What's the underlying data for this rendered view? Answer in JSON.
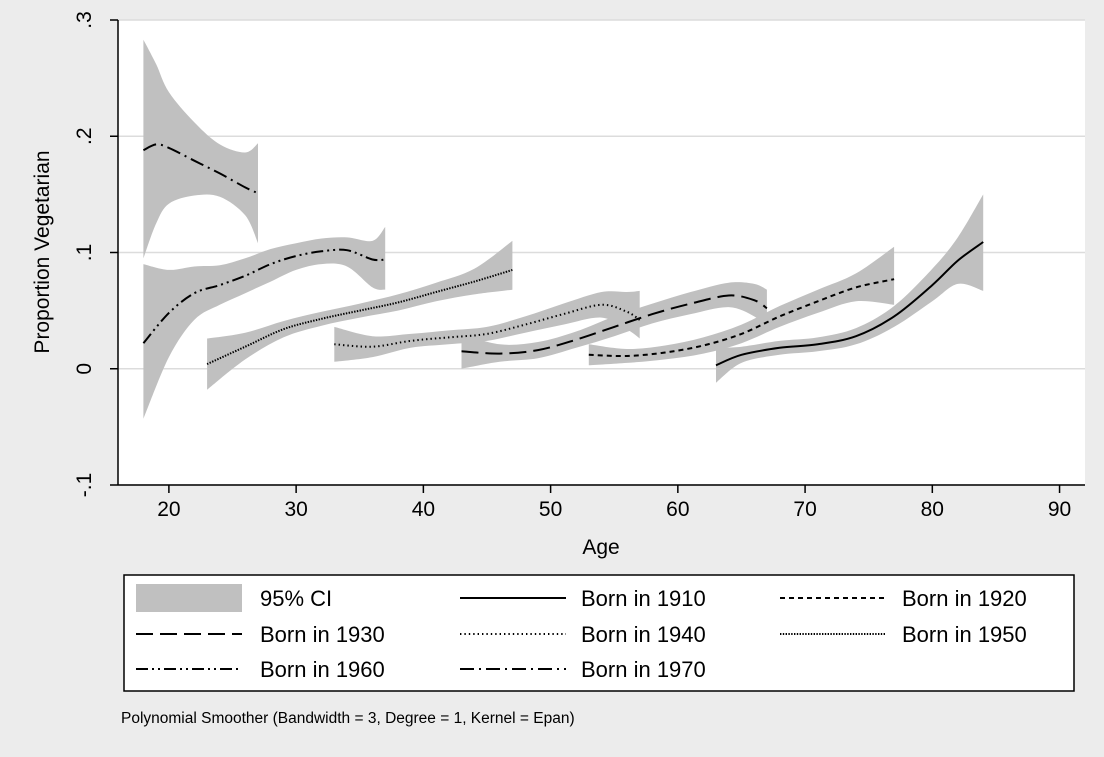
{
  "chart_data": {
    "type": "line",
    "xlabel": "Age",
    "ylabel": "Proportion Vegetarian",
    "xlim": [
      16,
      92
    ],
    "ylim": [
      -0.1,
      0.3
    ],
    "x_ticks": [
      "20",
      "30",
      "40",
      "50",
      "60",
      "70",
      "80",
      "90"
    ],
    "y_ticks": [
      "-.1",
      "0",
      ".1",
      ".2",
      ".3"
    ],
    "grid": "horizontal",
    "legend_position": "bottom",
    "legend": [
      {
        "label": "95% CI",
        "style": "band"
      },
      {
        "label": "Born in 1910",
        "style": "solid"
      },
      {
        "label": "Born in 1920",
        "style": "short-dash"
      },
      {
        "label": "Born in 1930",
        "style": "long-dash"
      },
      {
        "label": "Born in 1940",
        "style": "dot"
      },
      {
        "label": "Born in 1950",
        "style": "dense-dot"
      },
      {
        "label": "Born in 1960",
        "style": "dash-dot-dot"
      },
      {
        "label": "Born in 1970",
        "style": "dash-dot"
      }
    ],
    "note": "Polynomial Smoother (Bandwidth = 3, Degree = 1, Kernel = Epan)",
    "colors": {
      "band": "#c0c0c0",
      "line": "#000000",
      "grid": "#dcdcdc",
      "plot_bg": "#ffffff",
      "outer_bg": "#ececec"
    },
    "series": [
      {
        "name": "Born in 1970",
        "style": "dash-dot",
        "x": [
          18,
          19,
          20,
          22,
          24,
          26,
          27
        ],
        "y": [
          0.188,
          0.193,
          0.19,
          0.179,
          0.168,
          0.156,
          0.151
        ],
        "ci_lower": [
          0.095,
          0.125,
          0.142,
          0.149,
          0.148,
          0.132,
          0.108
        ],
        "ci_upper": [
          0.283,
          0.262,
          0.238,
          0.212,
          0.193,
          0.186,
          0.194
        ]
      },
      {
        "name": "Born in 1960",
        "style": "dash-dot-dot",
        "x": [
          18,
          20,
          22,
          24,
          26,
          28,
          30,
          32,
          34,
          36,
          37
        ],
        "y": [
          0.022,
          0.048,
          0.065,
          0.072,
          0.08,
          0.09,
          0.097,
          0.101,
          0.102,
          0.094,
          0.094
        ],
        "ci_lower": [
          -0.043,
          0.01,
          0.042,
          0.055,
          0.065,
          0.075,
          0.085,
          0.09,
          0.088,
          0.07,
          0.068
        ],
        "ci_upper": [
          0.09,
          0.085,
          0.088,
          0.089,
          0.095,
          0.103,
          0.108,
          0.112,
          0.113,
          0.11,
          0.122
        ]
      },
      {
        "name": "Born in 1950",
        "style": "dense-dot",
        "x": [
          23,
          26,
          29,
          32,
          35,
          38,
          41,
          44,
          47
        ],
        "y": [
          0.004,
          0.019,
          0.034,
          0.043,
          0.05,
          0.057,
          0.066,
          0.075,
          0.085
        ],
        "ci_lower": [
          -0.018,
          0.008,
          0.027,
          0.037,
          0.044,
          0.05,
          0.058,
          0.064,
          0.068
        ],
        "ci_upper": [
          0.026,
          0.031,
          0.041,
          0.049,
          0.056,
          0.064,
          0.074,
          0.086,
          0.11
        ]
      },
      {
        "name": "Born in 1940",
        "style": "dot",
        "x": [
          33,
          36,
          39,
          42,
          45,
          48,
          51,
          54,
          56,
          57
        ],
        "y": [
          0.021,
          0.019,
          0.024,
          0.027,
          0.03,
          0.038,
          0.047,
          0.055,
          0.049,
          0.042
        ],
        "ci_lower": [
          0.006,
          0.01,
          0.018,
          0.021,
          0.024,
          0.031,
          0.038,
          0.044,
          0.034,
          0.026
        ],
        "ci_upper": [
          0.036,
          0.028,
          0.03,
          0.033,
          0.036,
          0.045,
          0.056,
          0.066,
          0.066,
          0.067
        ]
      },
      {
        "name": "Born in 1930",
        "style": "long-dash",
        "x": [
          43,
          46,
          49,
          52,
          55,
          58,
          61,
          64,
          66,
          67
        ],
        "y": [
          0.015,
          0.013,
          0.016,
          0.025,
          0.036,
          0.047,
          0.056,
          0.063,
          0.059,
          0.052
        ],
        "ci_lower": [
          0.0,
          0.006,
          0.009,
          0.018,
          0.028,
          0.039,
          0.047,
          0.053,
          0.045,
          0.035
        ],
        "ci_upper": [
          0.03,
          0.021,
          0.023,
          0.032,
          0.045,
          0.056,
          0.066,
          0.074,
          0.073,
          0.068
        ]
      },
      {
        "name": "Born in 1920",
        "style": "short-dash",
        "x": [
          53,
          56,
          59,
          62,
          65,
          68,
          71,
          74,
          77
        ],
        "y": [
          0.012,
          0.011,
          0.014,
          0.02,
          0.03,
          0.045,
          0.058,
          0.07,
          0.077
        ],
        "ci_lower": [
          0.003,
          0.005,
          0.008,
          0.013,
          0.022,
          0.036,
          0.048,
          0.058,
          0.055
        ],
        "ci_upper": [
          0.021,
          0.017,
          0.02,
          0.027,
          0.038,
          0.054,
          0.068,
          0.082,
          0.105
        ]
      },
      {
        "name": "Born in 1910",
        "style": "solid",
        "x": [
          63,
          65,
          68,
          71,
          74,
          77,
          80,
          82,
          84
        ],
        "y": [
          0.003,
          0.012,
          0.018,
          0.021,
          0.028,
          0.045,
          0.072,
          0.093,
          0.109
        ],
        "ci_lower": [
          -0.012,
          0.005,
          0.012,
          0.015,
          0.021,
          0.036,
          0.058,
          0.073,
          0.067
        ],
        "ci_upper": [
          0.018,
          0.019,
          0.024,
          0.027,
          0.035,
          0.054,
          0.086,
          0.113,
          0.15
        ]
      }
    ]
  }
}
